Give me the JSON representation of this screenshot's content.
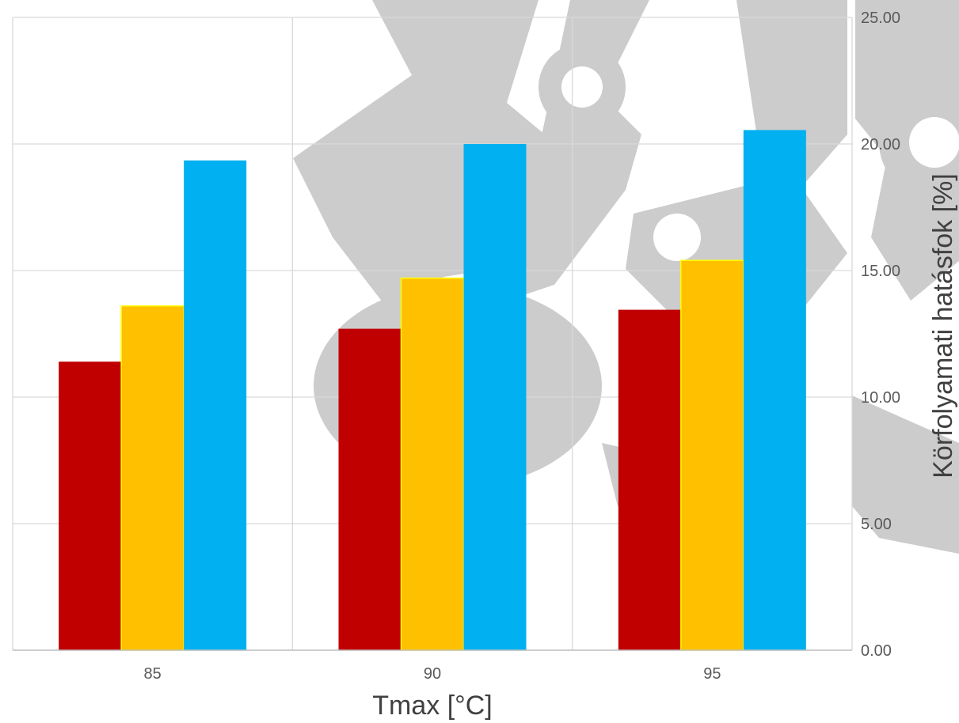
{
  "chart_data": {
    "type": "bar",
    "categories": [
      "85",
      "90",
      "95"
    ],
    "series": [
      {
        "values": [
          11.4,
          12.7,
          13.45
        ],
        "color": "#C00000"
      },
      {
        "values": [
          13.6,
          14.7,
          15.4
        ],
        "color": "#FFC000",
        "outline": "#FFFF00"
      },
      {
        "values": [
          19.35,
          20.0,
          20.55
        ],
        "color": "#00B0F0"
      }
    ],
    "xlabel": "Tmax [°C]",
    "ylabel": "Körfolyamati hatásfok [%]",
    "ylim": [
      0,
      25
    ],
    "yticks": [
      "0.00",
      "5.00",
      "10.00",
      "15.00",
      "20.00",
      "25.00"
    ],
    "y_axis_side": "right",
    "grid": true,
    "gridline_color": "#D9D9D9",
    "watermark_color": "#CCCCCC",
    "watermark_icon": "gear-logo-icon"
  }
}
